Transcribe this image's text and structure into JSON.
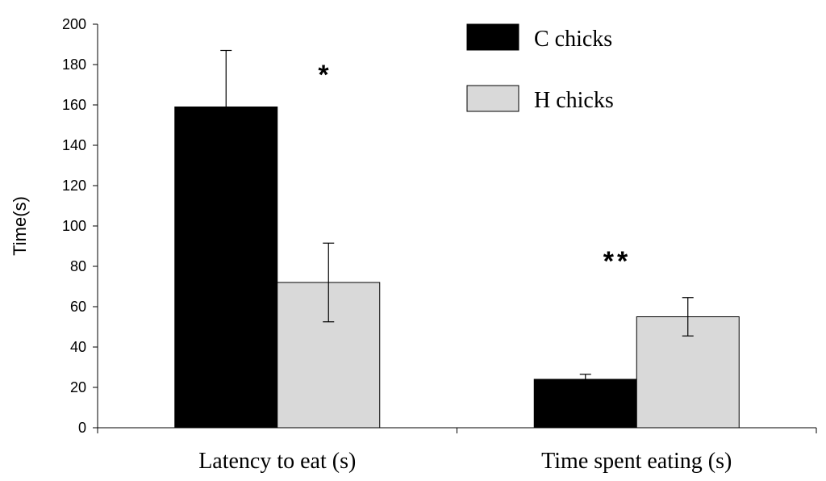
{
  "chart_data": {
    "type": "bar",
    "ylabel": "Time(s)",
    "ylim": [
      0,
      200
    ],
    "ytick_step": 20,
    "categories": [
      "Latency to eat (s)",
      "Time spent eating (s)"
    ],
    "series": [
      {
        "name": "C chicks",
        "color": "#000000",
        "values": [
          159,
          24
        ],
        "errors": [
          28,
          2.5
        ]
      },
      {
        "name": "H chicks",
        "color": "#d9d9d9",
        "values": [
          72,
          55
        ],
        "errors": [
          19.5,
          9.5
        ]
      }
    ],
    "annotations": [
      "*",
      "**"
    ],
    "legend_position": "top-right",
    "grid": false
  }
}
